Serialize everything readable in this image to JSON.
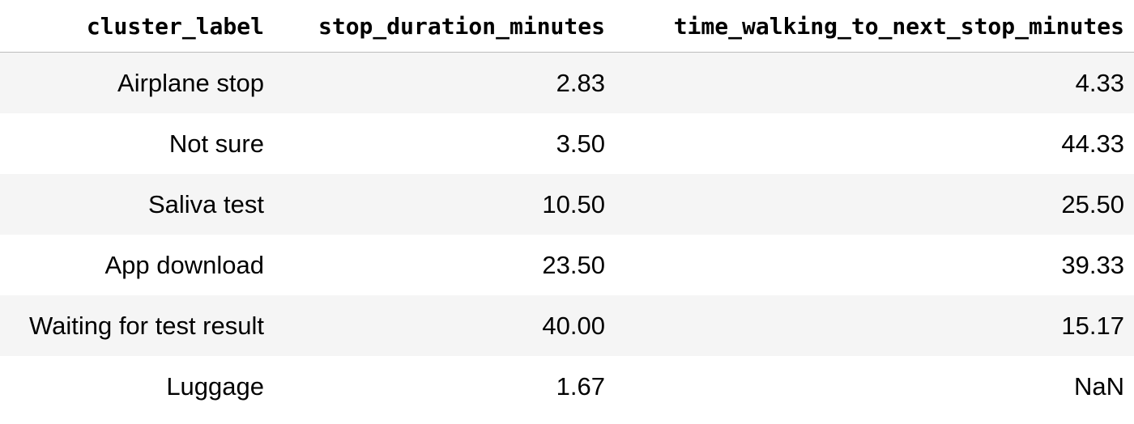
{
  "table": {
    "columns": [
      "cluster_label",
      "stop_duration_minutes",
      "time_walking_to_next_stop_minutes"
    ],
    "rows": [
      [
        "Airplane stop",
        "2.83",
        "4.33"
      ],
      [
        "Not sure",
        "3.50",
        "44.33"
      ],
      [
        "Saliva test",
        "10.50",
        "25.50"
      ],
      [
        "App download",
        "23.50",
        "39.33"
      ],
      [
        "Waiting for test result",
        "40.00",
        "15.17"
      ],
      [
        "Luggage",
        "1.67",
        "NaN"
      ]
    ]
  }
}
